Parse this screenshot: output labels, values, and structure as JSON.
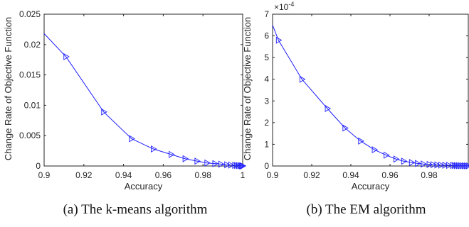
{
  "chart_data": [
    {
      "type": "line",
      "title": "",
      "xlabel": "Accuracy",
      "ylabel": "Change Rate of Objective Function",
      "xlim": [
        0.9,
        1.0
      ],
      "ylim": [
        0,
        0.025
      ],
      "xticks": [
        "0.9",
        "0.92",
        "0.94",
        "0.96",
        "0.98",
        "1"
      ],
      "yticks": [
        "0",
        "0.005",
        "0.01",
        "0.015",
        "0.02",
        "0.025"
      ],
      "exponent_label": "",
      "grid": false,
      "marker": "triangle-right",
      "color": "#1f1fff",
      "series": [
        {
          "x": [
            0.9,
            0.911,
            0.93,
            0.944,
            0.955,
            0.964,
            0.971,
            0.977,
            0.982,
            0.986,
            0.989,
            0.992,
            0.994,
            0.996,
            0.997,
            0.998,
            0.999,
            0.9995,
            1.0
          ],
          "y": [
            0.0218,
            0.018,
            0.0089,
            0.0045,
            0.0028,
            0.0019,
            0.0012,
            0.0008,
            0.0005,
            0.0004,
            0.0003,
            0.0002,
            0.00015,
            0.0001,
            8e-05,
            6e-05,
            4e-05,
            2e-05,
            1e-05
          ],
          "markers_from": 1
        }
      ]
    },
    {
      "type": "line",
      "title": "",
      "xlabel": "Accuracy",
      "ylabel": "Change Rate of Objective Function",
      "xlim": [
        0.9,
        1.0
      ],
      "ylim": [
        0,
        7
      ],
      "xticks": [
        "0.9",
        "0.92",
        "0.94",
        "0.96",
        "0.98",
        ""
      ],
      "yticks": [
        "0",
        "1",
        "2",
        "3",
        "4",
        "5",
        "6",
        "7"
      ],
      "exponent_label": "×10",
      "exponent_power": "-4",
      "grid": false,
      "marker": "triangle-right",
      "color": "#1f1fff",
      "series": [
        {
          "x": [
            0.9,
            0.903,
            0.915,
            0.928,
            0.937,
            0.945,
            0.952,
            0.958,
            0.963,
            0.967,
            0.971,
            0.974,
            0.977,
            0.98,
            0.982,
            0.984,
            0.986,
            0.988,
            0.99,
            0.992,
            0.993,
            0.994,
            0.995,
            0.996,
            0.997,
            0.998,
            0.999,
            1.0
          ],
          "y": [
            6.5,
            5.8,
            4.0,
            2.65,
            1.75,
            1.15,
            0.75,
            0.5,
            0.32,
            0.22,
            0.16,
            0.12,
            0.09,
            0.07,
            0.06,
            0.05,
            0.04,
            0.035,
            0.03,
            0.025,
            0.02,
            0.018,
            0.015,
            0.012,
            0.01,
            0.008,
            0.006,
            0.005
          ],
          "markers_from": 1
        }
      ]
    }
  ],
  "captions": {
    "a": "(a) The k-means algorithm",
    "b": "(b) The EM algorithm"
  }
}
